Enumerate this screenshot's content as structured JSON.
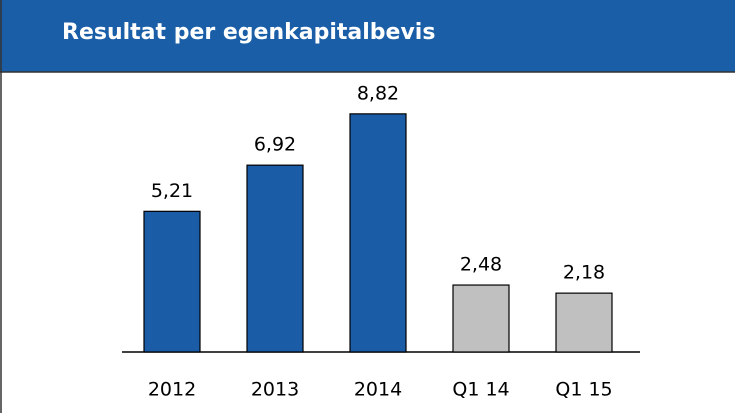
{
  "chart_data": {
    "type": "bar",
    "title": "Resultat per egenkapitalbevis",
    "categories": [
      "2012",
      "2013",
      "2014",
      "Q1 14",
      "Q1 15"
    ],
    "values": [
      5.21,
      6.92,
      8.82,
      2.48,
      2.18
    ],
    "value_labels": [
      "5,21",
      "6,92",
      "8,82",
      "2,48",
      "2,18"
    ],
    "colors": [
      "#1a5ca6",
      "#1a5ca6",
      "#1a5ca6",
      "#c0c0c0",
      "#c0c0c0"
    ]
  }
}
